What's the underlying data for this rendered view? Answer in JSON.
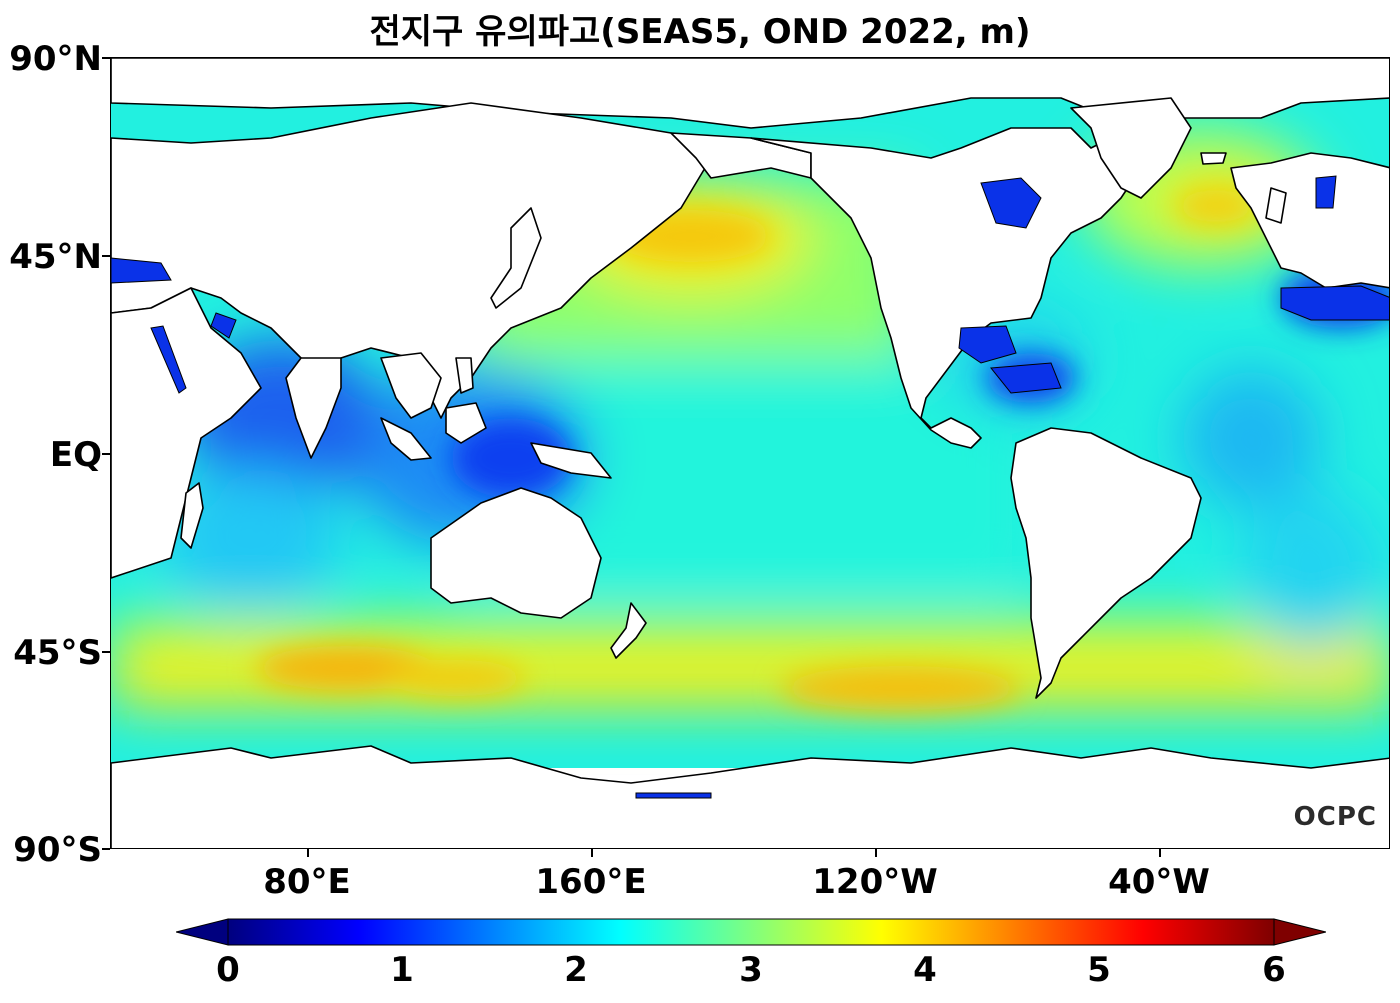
{
  "title": "전지구 유의파고(SEAS5, OND 2022, m)",
  "lat_labels": [
    "90°N",
    "45°N",
    "EQ",
    "45°S",
    "90°S"
  ],
  "lon_labels": [
    "80°E",
    "160°E",
    "120°W",
    "40°W"
  ],
  "logo": "OCPC",
  "colorbar": {
    "ticks": [
      "0",
      "1",
      "2",
      "3",
      "4",
      "5",
      "6"
    ],
    "colors": [
      "#00007f",
      "#0000ff",
      "#007fff",
      "#00ffff",
      "#7fff7f",
      "#ffff00",
      "#ff7f00",
      "#ff0000",
      "#7f0000"
    ]
  }
}
